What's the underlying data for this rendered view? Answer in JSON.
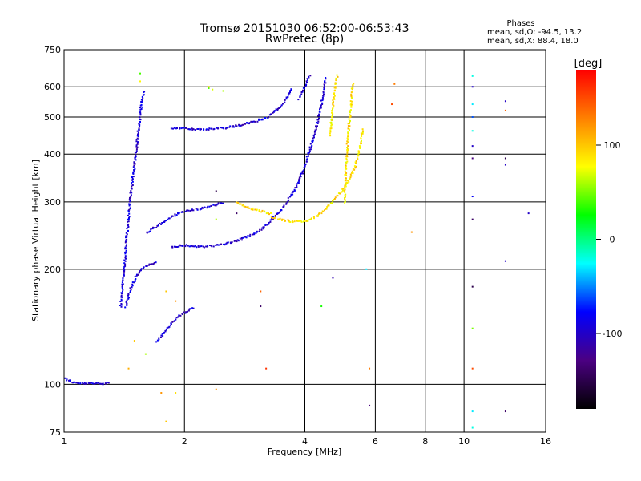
{
  "chart_data": {
    "type": "scatter",
    "title": "Tromsø 20151030 06:52:00-06:53:43",
    "subtitle": "RwPretec (8p)",
    "xlabel": "Frequency [MHz]",
    "ylabel": "Stationary phase Virtual Height [km]",
    "x_scale": "log",
    "y_scale": "log",
    "xlim": [
      1,
      16
    ],
    "ylim": [
      75,
      750
    ],
    "x_ticks": [
      1,
      2,
      4,
      6,
      8,
      10,
      16
    ],
    "x_tick_labels": [
      "1",
      "2",
      "4",
      "6",
      "8",
      "10",
      "16"
    ],
    "x_gridlines": [
      2,
      4,
      6,
      8,
      10
    ],
    "y_ticks": [
      75,
      100,
      200,
      300,
      400,
      500,
      600,
      750
    ],
    "y_tick_labels": [
      "75",
      "100",
      "200",
      "300",
      "400",
      "500",
      "600",
      "750"
    ],
    "y_gridlines": [
      100,
      200,
      300,
      400,
      500,
      600
    ],
    "grid": true,
    "legend": {
      "title": "Phases",
      "lines": [
        "mean, sd,O: -94.5, 13.2",
        "mean, sd,X: 88.4, 18.0"
      ],
      "position": "top-right"
    },
    "colorbar": {
      "label": "[deg]",
      "ticks": [
        -100,
        0,
        100
      ],
      "tick_labels": [
        "-100",
        "0",
        "100"
      ],
      "range": [
        -180,
        180
      ],
      "stops": [
        "#000000",
        "#4b0082",
        "#0000ff",
        "#00ffff",
        "#00ff00",
        "#ffff00",
        "#ff8000",
        "#ff0000"
      ],
      "position": "right"
    },
    "series": [
      {
        "phase_mean": -94.5,
        "traces": [
          {
            "f": [
              1.0,
              1.04,
              1.08,
              1.12,
              1.16,
              1.2,
              1.25,
              1.3
            ],
            "h": [
              104,
              102,
              101,
              101,
              101,
              101,
              101,
              102
            ]
          },
          {
            "f": [
              1.38,
              1.4,
              1.42,
              1.44,
              1.46,
              1.48,
              1.5,
              1.52,
              1.54,
              1.56,
              1.58
            ],
            "h": [
              160,
              190,
              230,
              270,
              310,
              350,
              390,
              440,
              500,
              560,
              590
            ]
          },
          {
            "f": [
              1.42,
              1.45,
              1.5,
              1.55,
              1.6,
              1.65,
              1.7
            ],
            "h": [
              160,
              175,
              190,
              200,
              205,
              208,
              210
            ]
          },
          {
            "f": [
              1.6,
              1.7,
              1.8,
              1.9,
              2.0,
              2.2,
              2.5
            ],
            "h": [
              250,
              260,
              270,
              280,
              285,
              290,
              300
            ]
          },
          {
            "f": [
              1.7,
              1.8,
              1.9,
              2.0,
              2.1
            ],
            "h": [
              130,
              140,
              150,
              155,
              160
            ]
          },
          {
            "f": [
              1.85,
              2.0,
              2.2,
              2.5,
              2.8,
              3.0,
              3.2,
              3.5,
              3.7
            ],
            "h": [
              470,
              470,
              465,
              470,
              480,
              490,
              500,
              540,
              600
            ]
          },
          {
            "f": [
              1.85,
              2.0,
              2.2,
              2.5,
              2.8,
              3.0,
              3.2,
              3.5,
              3.8,
              4.0,
              4.2,
              4.35,
              4.45,
              4.5
            ],
            "h": [
              230,
              232,
              230,
              233,
              242,
              250,
              262,
              290,
              330,
              380,
              450,
              520,
              600,
              640
            ]
          },
          {
            "f": [
              3.85,
              3.9,
              4.0,
              4.05,
              4.1
            ],
            "h": [
              560,
              580,
              610,
              630,
              650
            ]
          }
        ]
      },
      {
        "phase_mean": 88.4,
        "traces": [
          {
            "f": [
              2.7,
              2.9,
              3.1,
              3.3
            ],
            "h": [
              300,
              290,
              285,
              280
            ]
          },
          {
            "f": [
              3.3,
              3.5,
              3.7,
              3.9,
              4.1,
              4.3,
              4.5,
              4.7,
              4.9,
              5.1,
              5.3,
              5.4,
              5.5,
              5.55
            ],
            "h": [
              275,
              270,
              268,
              268,
              270,
              278,
              290,
              305,
              320,
              340,
              370,
              400,
              430,
              470
            ]
          },
          {
            "f": [
              5.0,
              5.05,
              5.1,
              5.15,
              5.2,
              5.25
            ],
            "h": [
              300,
              380,
              440,
              500,
              560,
              620
            ]
          },
          {
            "f": [
              4.6,
              4.65,
              4.7,
              4.75,
              4.8
            ],
            "h": [
              450,
              500,
              560,
              610,
              650
            ]
          }
        ]
      }
    ],
    "scattered_points": [
      {
        "f": 10.5,
        "h": 640,
        "phase": -20
      },
      {
        "f": 10.5,
        "h": 600,
        "phase": -100
      },
      {
        "f": 10.5,
        "h": 540,
        "phase": -30
      },
      {
        "f": 10.5,
        "h": 500,
        "phase": -60
      },
      {
        "f": 10.5,
        "h": 460,
        "phase": -20
      },
      {
        "f": 10.5,
        "h": 420,
        "phase": -100
      },
      {
        "f": 10.5,
        "h": 390,
        "phase": -130
      },
      {
        "f": 10.5,
        "h": 310,
        "phase": -80
      },
      {
        "f": 10.5,
        "h": 270,
        "phase": -140
      },
      {
        "f": 10.5,
        "h": 180,
        "phase": -150
      },
      {
        "f": 10.5,
        "h": 140,
        "phase": 50
      },
      {
        "f": 10.5,
        "h": 110,
        "phase": 150
      },
      {
        "f": 10.5,
        "h": 85,
        "phase": -30
      },
      {
        "f": 10.5,
        "h": 77,
        "phase": -20
      },
      {
        "f": 12.7,
        "h": 550,
        "phase": -100
      },
      {
        "f": 12.7,
        "h": 520,
        "phase": 140
      },
      {
        "f": 12.7,
        "h": 390,
        "phase": -150
      },
      {
        "f": 12.7,
        "h": 375,
        "phase": -100
      },
      {
        "f": 12.7,
        "h": 210,
        "phase": -100
      },
      {
        "f": 12.7,
        "h": 85,
        "phase": -140
      },
      {
        "f": 14.5,
        "h": 280,
        "phase": -100
      },
      {
        "f": 6.7,
        "h": 610,
        "phase": 130
      },
      {
        "f": 6.6,
        "h": 540,
        "phase": 150
      },
      {
        "f": 7.4,
        "h": 250,
        "phase": 120
      },
      {
        "f": 5.7,
        "h": 200,
        "phase": -30
      },
      {
        "f": 4.7,
        "h": 190,
        "phase": -110
      },
      {
        "f": 4.4,
        "h": 160,
        "phase": 30
      },
      {
        "f": 5.8,
        "h": 88,
        "phase": -130
      },
      {
        "f": 5.8,
        "h": 110,
        "phase": 130
      },
      {
        "f": 3.2,
        "h": 110,
        "phase": 160
      },
      {
        "f": 3.1,
        "h": 160,
        "phase": -140
      },
      {
        "f": 3.1,
        "h": 175,
        "phase": 140
      },
      {
        "f": 2.7,
        "h": 280,
        "phase": -140
      },
      {
        "f": 2.4,
        "h": 270,
        "phase": 60
      },
      {
        "f": 2.4,
        "h": 320,
        "phase": -150
      },
      {
        "f": 2.4,
        "h": 97,
        "phase": 120
      },
      {
        "f": 1.55,
        "h": 650,
        "phase": 40
      },
      {
        "f": 1.55,
        "h": 620,
        "phase": 80
      },
      {
        "f": 2.3,
        "h": 595,
        "phase": 40
      },
      {
        "f": 2.35,
        "h": 590,
        "phase": 70
      },
      {
        "f": 2.3,
        "h": 600,
        "phase": 100
      },
      {
        "f": 2.5,
        "h": 585,
        "phase": 60
      },
      {
        "f": 1.75,
        "h": 95,
        "phase": 120
      },
      {
        "f": 1.9,
        "h": 95,
        "phase": 90
      },
      {
        "f": 1.8,
        "h": 80,
        "phase": 100
      },
      {
        "f": 1.8,
        "h": 175,
        "phase": 100
      },
      {
        "f": 1.9,
        "h": 165,
        "phase": 120
      },
      {
        "f": 1.5,
        "h": 130,
        "phase": 100
      },
      {
        "f": 1.6,
        "h": 120,
        "phase": 60
      },
      {
        "f": 1.45,
        "h": 110,
        "phase": 110
      }
    ]
  }
}
